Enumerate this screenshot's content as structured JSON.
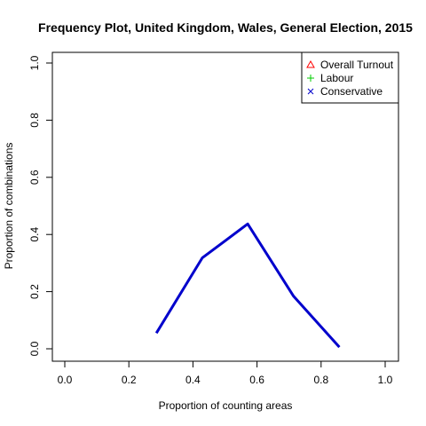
{
  "chart_data": {
    "type": "line",
    "title": "Frequency Plot, United Kingdom, Wales, General Election, 2015",
    "xlabel": "Proportion of counting areas",
    "ylabel": "Proportion of combinations",
    "xlim": [
      0,
      1
    ],
    "ylim": [
      0,
      1
    ],
    "xticks": [
      "0.0",
      "0.2",
      "0.4",
      "0.6",
      "0.8",
      "1.0"
    ],
    "yticks": [
      "0.0",
      "0.2",
      "0.4",
      "0.6",
      "0.8",
      "1.0"
    ],
    "grid": false,
    "legend_position": "top-right",
    "legend": [
      {
        "name": "Overall Turnout",
        "marker": "triangle",
        "color": "#ff0000"
      },
      {
        "name": "Labour",
        "marker": "plus",
        "color": "#00cc00"
      },
      {
        "name": "Conservative",
        "marker": "cross",
        "color": "#0000cc"
      }
    ],
    "series": [
      {
        "name": "Conservative",
        "color": "#0000cc",
        "x": [
          0.286,
          0.429,
          0.571,
          0.714,
          0.857
        ],
        "y": [
          0.055,
          0.318,
          0.437,
          0.184,
          0.006
        ]
      }
    ]
  }
}
